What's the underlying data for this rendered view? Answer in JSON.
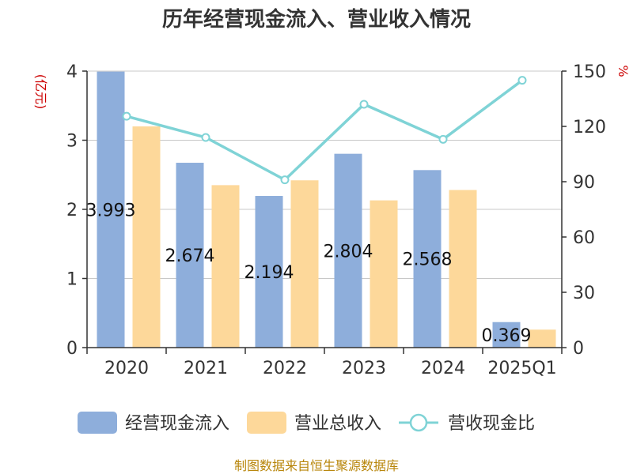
{
  "chart_data": {
    "type": "bar",
    "title": "历年经营现金流入、营业收入情况",
    "categories": [
      "2020",
      "2021",
      "2022",
      "2023",
      "2024",
      "2025Q1"
    ],
    "series": [
      {
        "name": "经营现金流入",
        "type": "bar",
        "axis": "left",
        "color": "#8eaedb",
        "values": [
          3.993,
          2.674,
          2.194,
          2.804,
          2.568,
          0.369
        ],
        "labels": [
          "3.993",
          "2.674",
          "2.194",
          "2.804",
          "2.568",
          "0.369"
        ]
      },
      {
        "name": "营业总收入",
        "type": "bar",
        "axis": "left",
        "color": "#fdd89a",
        "values": [
          3.2,
          2.35,
          2.42,
          2.13,
          2.28,
          0.26
        ]
      },
      {
        "name": "营收现金比",
        "type": "line",
        "axis": "right",
        "color": "#7fd3d6",
        "values": [
          125.5,
          114,
          91,
          132,
          113,
          145
        ]
      }
    ],
    "y_left": {
      "unit": "(亿元)",
      "ylim": [
        0,
        4
      ],
      "ticks": [
        "0",
        "1",
        "2",
        "3",
        "4"
      ]
    },
    "y_right": {
      "unit": "%",
      "ylim": [
        0,
        150
      ],
      "ticks": [
        "0",
        "30",
        "60",
        "90",
        "120",
        "150"
      ]
    },
    "grid": true,
    "legend_position": "bottom"
  },
  "source": "制图数据来自恒生聚源数据库"
}
